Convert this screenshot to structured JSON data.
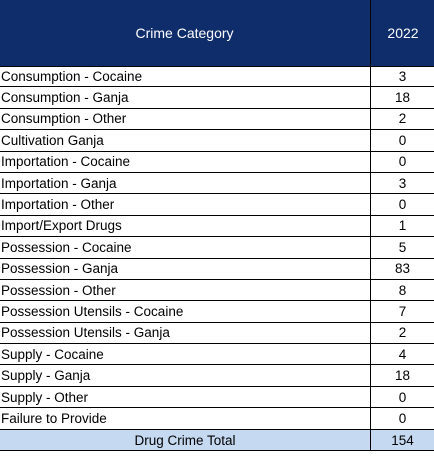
{
  "table": {
    "header": {
      "category_label": "Crime Category",
      "year_label": "2022"
    },
    "rows": [
      {
        "category": "Consumption - Cocaine",
        "value": "3"
      },
      {
        "category": "Consumption - Ganja",
        "value": "18"
      },
      {
        "category": "Consumption - Other",
        "value": "2"
      },
      {
        "category": "Cultivation Ganja",
        "value": "0"
      },
      {
        "category": "Importation - Cocaine",
        "value": "0"
      },
      {
        "category": "Importation - Ganja",
        "value": "3"
      },
      {
        "category": "Importation - Other",
        "value": "0"
      },
      {
        "category": "Import/Export Drugs",
        "value": "1"
      },
      {
        "category": "Possession - Cocaine",
        "value": "5"
      },
      {
        "category": "Possession - Ganja",
        "value": "83"
      },
      {
        "category": "Possession - Other",
        "value": "8"
      },
      {
        "category": "Possession Utensils - Cocaine",
        "value": "7"
      },
      {
        "category": "Possession Utensils - Ganja",
        "value": "2"
      },
      {
        "category": "Supply - Cocaine",
        "value": "4"
      },
      {
        "category": "Supply - Ganja",
        "value": "18"
      },
      {
        "category": "Supply - Other",
        "value": "0"
      },
      {
        "category": "Failure to Provide",
        "value": "0"
      }
    ],
    "total": {
      "label": "Drug Crime Total",
      "value": "154"
    },
    "colors": {
      "header_bg": "#0f2d6b",
      "header_text": "#ffffff",
      "total_bg": "#c5d9f1"
    }
  }
}
